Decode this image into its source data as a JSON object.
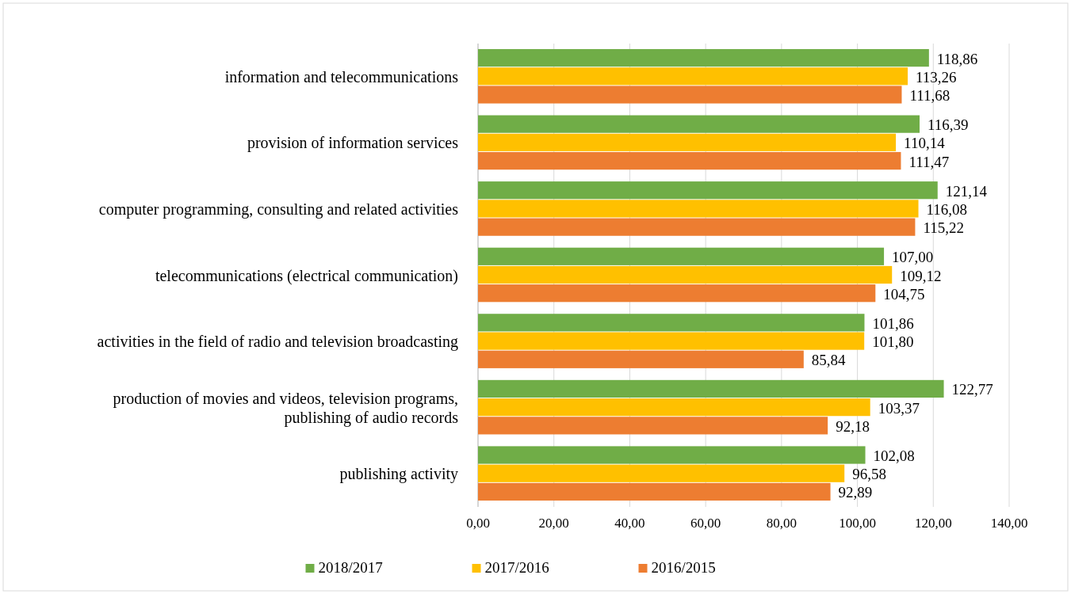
{
  "chart_data": {
    "type": "bar",
    "orientation": "horizontal",
    "categories": [
      "information and telecommunications",
      "provision of information services",
      "computer programming, consulting and related activities",
      "telecommunications (electrical communication)",
      "activities in the field of radio and television broadcasting",
      "production of movies and videos, television programs, publishing of audio records",
      "publishing activity"
    ],
    "series": [
      {
        "name": "2018/2017",
        "color": "#70ad47",
        "values": [
          118.86,
          116.39,
          121.14,
          107.0,
          101.86,
          122.77,
          102.08
        ],
        "value_labels": [
          "118,86",
          "116,39",
          "121,14",
          "107,00",
          "101,86",
          "122,77",
          "102,08"
        ]
      },
      {
        "name": "2017/2016",
        "color": "#ffc000",
        "values": [
          113.26,
          110.14,
          116.08,
          109.12,
          101.8,
          103.37,
          96.58
        ],
        "value_labels": [
          "113,26",
          "110,14",
          "116,08",
          "109,12",
          "101,80",
          "103,37",
          "96,58"
        ]
      },
      {
        "name": "2016/2015",
        "color": "#ed7d31",
        "values": [
          111.68,
          111.47,
          115.22,
          104.75,
          85.84,
          92.18,
          92.89
        ],
        "value_labels": [
          "111,68",
          "111,47",
          "115,22",
          "104,75",
          "85,84",
          "92,18",
          "92,89"
        ]
      }
    ],
    "xlim": [
      0,
      140
    ],
    "xticks": [
      {
        "value": 0,
        "label": "0,00"
      },
      {
        "value": 20,
        "label": "20,00"
      },
      {
        "value": 40,
        "label": "40,00"
      },
      {
        "value": 60,
        "label": "60,00"
      },
      {
        "value": 80,
        "label": "80,00"
      },
      {
        "value": 100,
        "label": "100,00"
      },
      {
        "value": 120,
        "label": "120,00"
      },
      {
        "value": 140,
        "label": "140,00"
      }
    ],
    "grid": "x",
    "legend": "bottom"
  }
}
